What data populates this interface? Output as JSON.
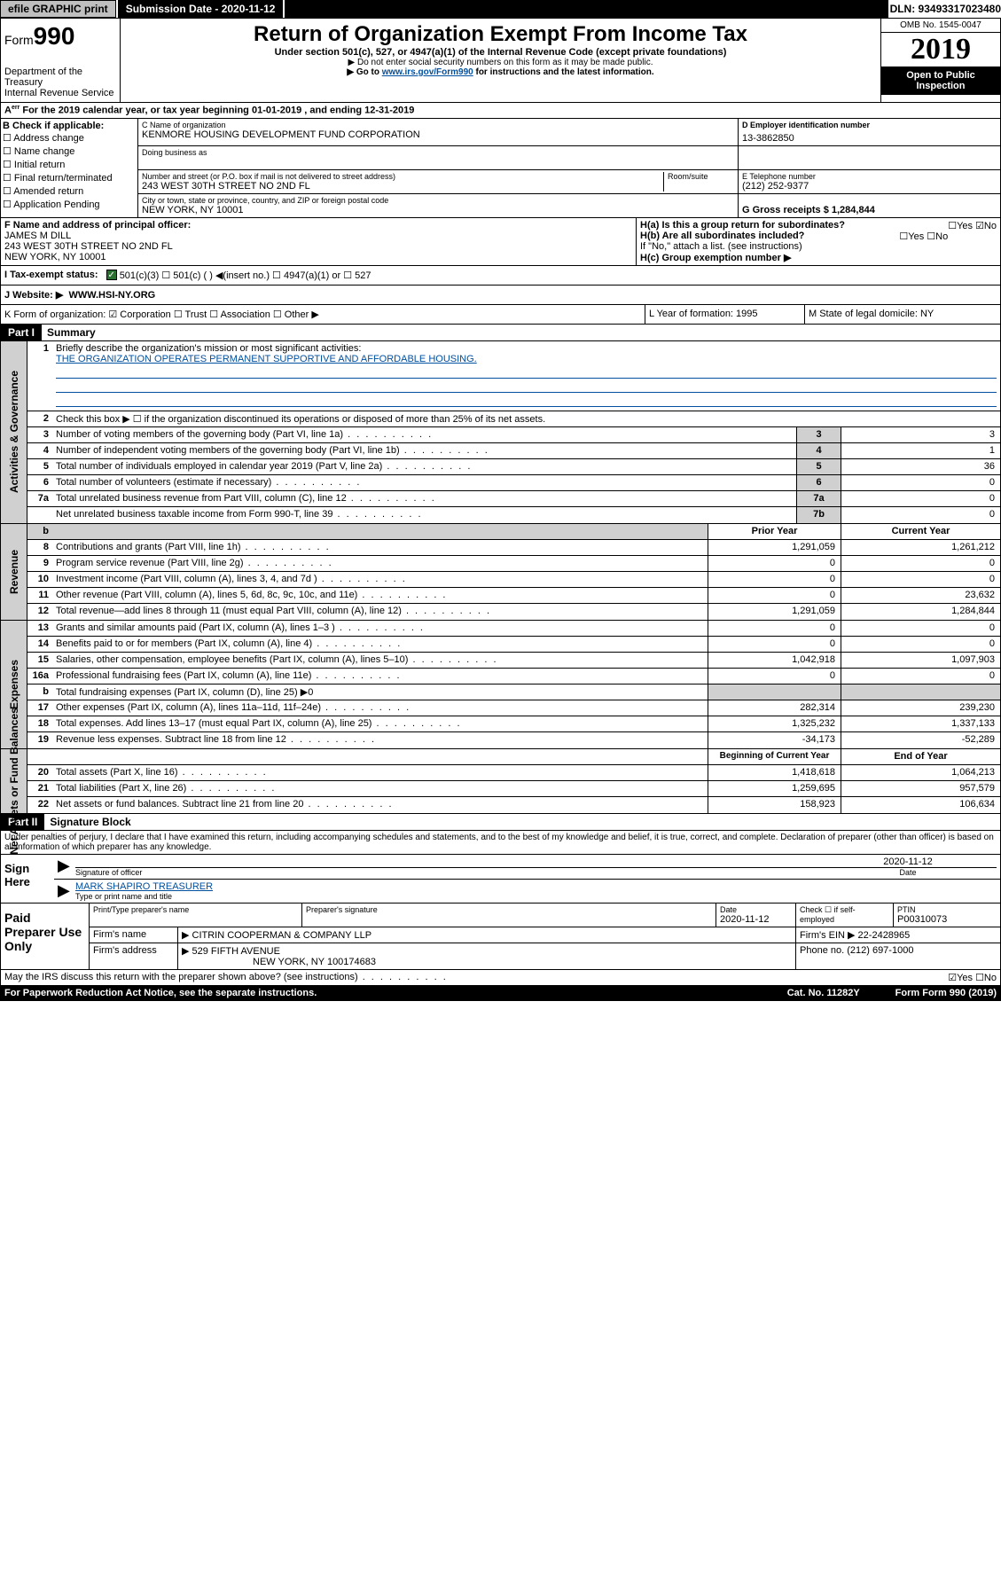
{
  "topbar": {
    "btn_efile": "efile GRAPHIC print",
    "btn_submission": "Submission Date - 2020-11-12",
    "dln": "DLN: 93493317023480"
  },
  "header": {
    "form_label": "Form",
    "form_num": "990",
    "dept": "Department of the Treasury",
    "irs": "Internal Revenue Service",
    "title": "Return of Organization Exempt From Income Tax",
    "sub": "Under section 501(c), 527, or 4947(a)(1) of the Internal Revenue Code (except private foundations)",
    "note1": "▶ Do not enter social security numbers on this form as it may be made public.",
    "note2_pre": "▶ Go to ",
    "note2_link": "www.irs.gov/Form990",
    "note2_post": " for instructions and the latest information.",
    "omb": "OMB No. 1545-0047",
    "year": "2019",
    "open": "Open to Public Inspection"
  },
  "period": {
    "text": "For the 2019 calendar year, or tax year beginning 01-01-2019    , and ending 12-31-2019"
  },
  "B": {
    "label": "B Check if applicable:",
    "opts": [
      "☐ Address change",
      "☐ Name change",
      "☐ Initial return",
      "☐ Final return/terminated",
      "☐ Amended return",
      "☐ Application Pending"
    ]
  },
  "C": {
    "name_label": "C Name of organization",
    "name": "KENMORE HOUSING DEVELOPMENT FUND CORPORATION",
    "dba_label": "Doing business as",
    "addr_label": "Number and street (or P.O. box if mail is not delivered to street address)",
    "room_label": "Room/suite",
    "addr": "243 WEST 30TH STREET NO 2ND FL",
    "city_label": "City or town, state or province, country, and ZIP or foreign postal code",
    "city": "NEW YORK, NY  10001"
  },
  "D": {
    "label": "D Employer identification number",
    "val": "13-3862850"
  },
  "E": {
    "label": "E Telephone number",
    "val": "(212) 252-9377"
  },
  "G": {
    "label": "G Gross receipts $ 1,284,844"
  },
  "F": {
    "label": "F  Name and address of principal officer:",
    "name": "JAMES M DILL",
    "addr1": "243 WEST 30TH STREET NO 2ND FL",
    "addr2": "NEW YORK, NY  10001"
  },
  "H": {
    "a": "H(a)  Is this a group return for subordinates?",
    "a_ans": "☐Yes ☑No",
    "b": "H(b)  Are all subordinates included?",
    "b_ans": "☐Yes ☐No",
    "b_note": "If \"No,\" attach a list. (see instructions)",
    "c": "H(c)  Group exemption number ▶"
  },
  "I": {
    "label": "I     Tax-exempt status:",
    "opts": "501(c)(3)    ☐  501(c) (  ) ◀(insert no.)    ☐  4947(a)(1) or  ☐  527"
  },
  "J": {
    "label": "J    Website: ▶",
    "val": "WWW.HSI-NY.ORG"
  },
  "K": {
    "label": "K Form of organization:  ☑ Corporation ☐ Trust ☐ Association ☐ Other ▶"
  },
  "L": {
    "label": "L Year of formation: 1995"
  },
  "M": {
    "label": "M State of legal domicile: NY"
  },
  "part1": {
    "hdr": "Part I",
    "title": "Summary",
    "q1": "Briefly describe the organization's mission or most significant activities:",
    "q1_ans": "THE ORGANIZATION OPERATES PERMANENT SUPPORTIVE AND AFFORDABLE HOUSING.",
    "q2": "Check this box ▶ ☐  if the organization discontinued its operations or disposed of more than 25% of its net assets.",
    "rows_ag": [
      {
        "n": "3",
        "d": "Number of voting members of the governing body (Part VI, line 1a)",
        "c": "3",
        "v": "3"
      },
      {
        "n": "4",
        "d": "Number of independent voting members of the governing body (Part VI, line 1b)",
        "c": "4",
        "v": "1"
      },
      {
        "n": "5",
        "d": "Total number of individuals employed in calendar year 2019 (Part V, line 2a)",
        "c": "5",
        "v": "36"
      },
      {
        "n": "6",
        "d": "Total number of volunteers (estimate if necessary)",
        "c": "6",
        "v": "0"
      },
      {
        "n": "7a",
        "d": "Total unrelated business revenue from Part VIII, column (C), line 12",
        "c": "7a",
        "v": "0"
      },
      {
        "n": "",
        "d": "Net unrelated business taxable income from Form 990-T, line 39",
        "c": "7b",
        "v": "0"
      }
    ],
    "hdr_prior": "Prior Year",
    "hdr_curr": "Current Year",
    "rows_rev": [
      {
        "n": "8",
        "d": "Contributions and grants (Part VIII, line 1h)",
        "p": "1,291,059",
        "c": "1,261,212"
      },
      {
        "n": "9",
        "d": "Program service revenue (Part VIII, line 2g)",
        "p": "0",
        "c": "0"
      },
      {
        "n": "10",
        "d": "Investment income (Part VIII, column (A), lines 3, 4, and 7d )",
        "p": "0",
        "c": "0"
      },
      {
        "n": "11",
        "d": "Other revenue (Part VIII, column (A), lines 5, 6d, 8c, 9c, 10c, and 11e)",
        "p": "0",
        "c": "23,632"
      },
      {
        "n": "12",
        "d": "Total revenue—add lines 8 through 11 (must equal Part VIII, column (A), line 12)",
        "p": "1,291,059",
        "c": "1,284,844"
      }
    ],
    "rows_exp": [
      {
        "n": "13",
        "d": "Grants and similar amounts paid (Part IX, column (A), lines 1–3 )",
        "p": "0",
        "c": "0"
      },
      {
        "n": "14",
        "d": "Benefits paid to or for members (Part IX, column (A), line 4)",
        "p": "0",
        "c": "0"
      },
      {
        "n": "15",
        "d": "Salaries, other compensation, employee benefits (Part IX, column (A), lines 5–10)",
        "p": "1,042,918",
        "c": "1,097,903"
      },
      {
        "n": "16a",
        "d": "Professional fundraising fees (Part IX, column (A), line 11e)",
        "p": "0",
        "c": "0"
      },
      {
        "n": "b",
        "d": "Total fundraising expenses (Part IX, column (D), line 25) ▶0",
        "p": "",
        "c": ""
      },
      {
        "n": "17",
        "d": "Other expenses (Part IX, column (A), lines 11a–11d, 11f–24e)",
        "p": "282,314",
        "c": "239,230"
      },
      {
        "n": "18",
        "d": "Total expenses. Add lines 13–17 (must equal Part IX, column (A), line 25)",
        "p": "1,325,232",
        "c": "1,337,133"
      },
      {
        "n": "19",
        "d": "Revenue less expenses. Subtract line 18 from line 12",
        "p": "-34,173",
        "c": "-52,289"
      }
    ],
    "hdr_beg": "Beginning of Current Year",
    "hdr_end": "End of Year",
    "rows_net": [
      {
        "n": "20",
        "d": "Total assets (Part X, line 16)",
        "p": "1,418,618",
        "c": "1,064,213"
      },
      {
        "n": "21",
        "d": "Total liabilities (Part X, line 26)",
        "p": "1,259,695",
        "c": "957,579"
      },
      {
        "n": "22",
        "d": "Net assets or fund balances. Subtract line 21 from line 20",
        "p": "158,923",
        "c": "106,634"
      }
    ],
    "side_ag": "Activities & Governance",
    "side_rev": "Revenue",
    "side_exp": "Expenses",
    "side_net": "Net Assets or Fund Balances"
  },
  "part2": {
    "hdr": "Part II",
    "title": "Signature Block",
    "decl": "Under penalties of perjury, I declare that I have examined this return, including accompanying schedules and statements, and to the best of my knowledge and belief, it is true, correct, and complete. Declaration of preparer (other than officer) is based on all information of which preparer has any knowledge.",
    "sign_here": "Sign Here",
    "sig_officer": "Signature of officer",
    "date": "2020-11-12",
    "date_lbl": "Date",
    "name_title": "MARK SHAPIRO  TREASURER",
    "type_name": "Type or print name and title",
    "paid_hdr": "Paid Preparer Use Only",
    "prep_name_lbl": "Print/Type preparer's name",
    "prep_sig_lbl": "Preparer's signature",
    "prep_date": "2020-11-12",
    "chk_self": "Check ☐ if self-employed",
    "ptin_lbl": "PTIN",
    "ptin": "P00310073",
    "firm_name_lbl": "Firm's name",
    "firm_name": "▶ CITRIN COOPERMAN & COMPANY LLP",
    "firm_ein_lbl": "Firm's EIN ▶ 22-2428965",
    "firm_addr_lbl": "Firm's address",
    "firm_addr": "▶ 529 FIFTH AVENUE",
    "firm_city": "NEW YORK, NY  100174683",
    "phone_lbl": "Phone no. (212) 697-1000",
    "discuss": "May the IRS discuss this return with the preparer shown above? (see instructions)",
    "discuss_ans": "☑Yes  ☐No"
  },
  "footer": {
    "notice": "For Paperwork Reduction Act Notice, see the separate instructions.",
    "cat": "Cat. No. 11282Y",
    "form": "Form 990 (2019)"
  }
}
